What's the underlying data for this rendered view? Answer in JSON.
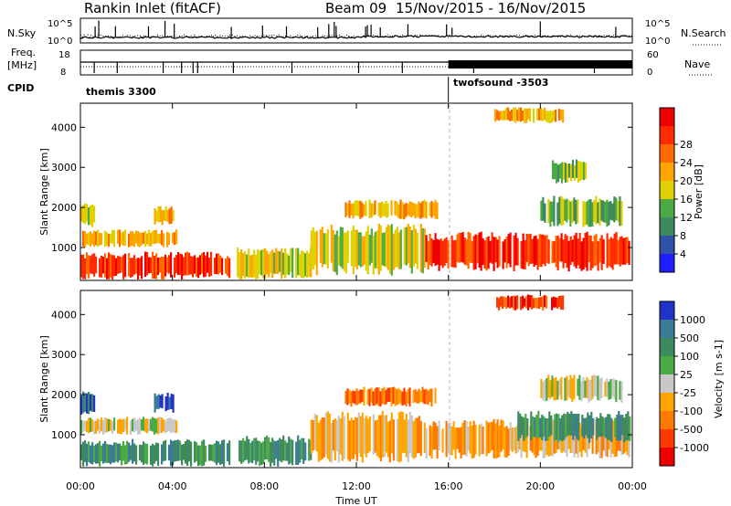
{
  "header": {
    "station": "Rankin Inlet (fitACF)",
    "beam": "Beam 09",
    "date_range": "15/Nov/2015 - 16/Nov/2015"
  },
  "strips": {
    "nsky_label": "N.Sky",
    "nsky_tick_top": "10^5",
    "nsky_tick_bottom": "10^0",
    "nsearch_label": "N.Search",
    "nsearch_tick_top": "10^5",
    "nsearch_tick_bottom": "10^0",
    "freq_label_1": "Freq.",
    "freq_label_2": "[MHz]",
    "freq_tick_top": "18",
    "freq_tick_bottom": "8",
    "nave_label": "Nave",
    "nave_tick_top": "60",
    "nave_tick_bottom": "0",
    "cpid_label": "CPID",
    "cpid_modes": [
      {
        "name": "themis 3300",
        "start_hour": 0
      },
      {
        "name": "twofsound -3503",
        "start_hour": 16
      }
    ]
  },
  "axes": {
    "ylabel": "Slant Range [km]",
    "xlabel": "Time UT",
    "x_ticks": [
      "00:00",
      "04:00",
      "08:00",
      "12:00",
      "16:00",
      "20:00",
      "00:00"
    ],
    "y_ticks": [
      "1000",
      "2000",
      "3000",
      "4000"
    ]
  },
  "colors": {
    "power": [
      "#1e1eff",
      "#2e52a8",
      "#3c8a5e",
      "#4caa44",
      "#e0d000",
      "#ffa500",
      "#ff6a00",
      "#ff2a00",
      "#ee0000"
    ],
    "velocity": [
      "#2233cc",
      "#3c7a9a",
      "#3c8a5e",
      "#4caa44",
      "#c8c8c8",
      "#ffa500",
      "#ff7a00",
      "#ff3a00",
      "#ee0000"
    ]
  },
  "chart_data": [
    {
      "type": "heatmap",
      "name": "power",
      "xlim": [
        0,
        24
      ],
      "ylim": [
        180,
        4600
      ],
      "colorbar_label": "Power [dB]",
      "colorbar_ticks": [
        "4",
        "8",
        "12",
        "16",
        "20",
        "24",
        "28"
      ],
      "regions": [
        {
          "t0": 0.0,
          "t1": 6.5,
          "r0": 200,
          "r1": 900,
          "level": 7
        },
        {
          "t0": 0.0,
          "t1": 4.2,
          "r0": 1000,
          "r1": 1450,
          "level": 5
        },
        {
          "t0": 0.0,
          "t1": 0.6,
          "r0": 1500,
          "r1": 2100,
          "level": 4
        },
        {
          "t0": 3.2,
          "t1": 4.0,
          "r0": 1550,
          "r1": 2050,
          "level": 5
        },
        {
          "t0": 6.8,
          "t1": 10.0,
          "r0": 200,
          "r1": 1000,
          "level": 4
        },
        {
          "t0": 10.0,
          "t1": 15.0,
          "r0": 300,
          "r1": 1600,
          "level": 4
        },
        {
          "t0": 11.5,
          "t1": 15.5,
          "r0": 1700,
          "r1": 2200,
          "level": 5
        },
        {
          "t0": 15.0,
          "t1": 23.9,
          "r0": 400,
          "r1": 1400,
          "level": 7
        },
        {
          "t0": 20.0,
          "t1": 23.5,
          "r0": 1500,
          "r1": 2300,
          "level": 3
        },
        {
          "t0": 20.5,
          "t1": 22.0,
          "r0": 2600,
          "r1": 3200,
          "level": 3
        },
        {
          "t0": 18.0,
          "t1": 21.0,
          "r0": 4100,
          "r1": 4500,
          "level": 5
        }
      ]
    },
    {
      "type": "heatmap",
      "name": "velocity",
      "xlim": [
        0,
        24
      ],
      "ylim": [
        180,
        4600
      ],
      "colorbar_label": "Velocity [m s-1]",
      "colorbar_ticks": [
        "1000",
        "500",
        "100",
        "25",
        "-25",
        "-100",
        "-500",
        "-1000"
      ],
      "regions": [
        {
          "t0": 0.0,
          "t1": 6.5,
          "r0": 200,
          "r1": 900,
          "level": 2
        },
        {
          "t0": 0.0,
          "t1": 4.2,
          "r0": 1000,
          "r1": 1450,
          "level": 4
        },
        {
          "t0": 0.0,
          "t1": 0.6,
          "r0": 1500,
          "r1": 2100,
          "level": 1
        },
        {
          "t0": 3.2,
          "t1": 4.0,
          "r0": 1550,
          "r1": 2050,
          "level": 0
        },
        {
          "t0": 6.8,
          "t1": 10.0,
          "r0": 200,
          "r1": 1000,
          "level": 2
        },
        {
          "t0": 10.0,
          "t1": 15.0,
          "r0": 300,
          "r1": 1600,
          "level": 5
        },
        {
          "t0": 11.5,
          "t1": 15.5,
          "r0": 1700,
          "r1": 2200,
          "level": 6
        },
        {
          "t0": 15.0,
          "t1": 23.9,
          "r0": 400,
          "r1": 1400,
          "level": 5
        },
        {
          "t0": 19.0,
          "t1": 23.9,
          "r0": 800,
          "r1": 1600,
          "level": 2
        },
        {
          "t0": 20.0,
          "t1": 23.5,
          "r0": 1800,
          "r1": 2500,
          "level": 4
        },
        {
          "t0": 18.0,
          "t1": 21.0,
          "r0": 4100,
          "r1": 4500,
          "level": 7
        }
      ]
    }
  ]
}
